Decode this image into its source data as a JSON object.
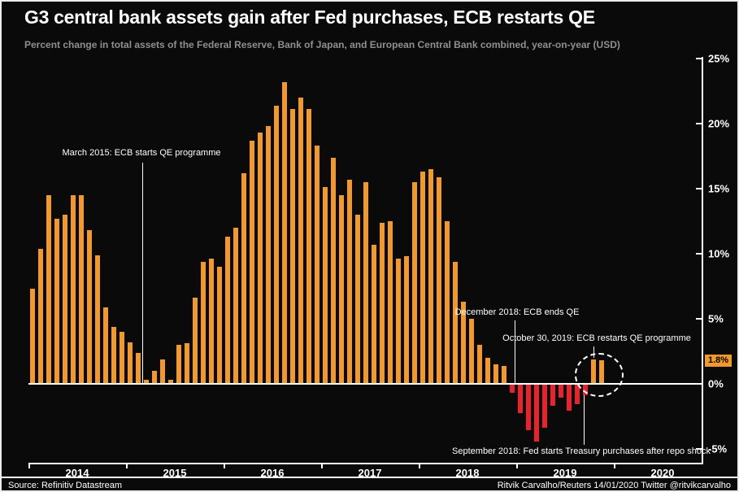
{
  "header": {
    "title": "G3 central bank assets gain after Fed purchases, ECB restarts QE",
    "subtitle": "Percent change in total assets of the Federal Reserve, Bank of Japan, and European Central Bank combined, year-on-year (USD)"
  },
  "annotations": {
    "march_2015": "March 2015: ECB starts QE programme",
    "december_2018": "December 2018: ECB ends QE",
    "october_2019": "October 30, 2019: ECB restarts QE programme",
    "september_repo": "September 2018: Fed starts Treasury purchases after repo shock"
  },
  "latest_value_label": "1.8%",
  "footer": {
    "source": "Source: Refinitiv Datastream",
    "credit": "Ritvik Carvalho/Reuters 14/01/2020 Twitter @ritvikcarvalho"
  },
  "colors": {
    "positive_bar": "#F2992E",
    "negative_bar": "#E8232E",
    "background": "#0A0A0A",
    "text": "#FFFFFF",
    "subtitle_text": "#8F8F8F"
  },
  "chart_data": {
    "type": "bar",
    "title": "G3 central bank assets gain after Fed purchases, ECB restarts QE",
    "ylabel": "Percent change year-on-year (USD)",
    "start_month": "2014-01",
    "end_month": "2019-11",
    "x_years": [
      "2014",
      "2015",
      "2016",
      "2017",
      "2018",
      "2019",
      "2020"
    ],
    "y_ticks": [
      {
        "label": "25%",
        "value": 25
      },
      {
        "label": "20%",
        "value": 20
      },
      {
        "label": "15%",
        "value": 15
      },
      {
        "label": "10%",
        "value": 10
      },
      {
        "label": "5%",
        "value": 5
      },
      {
        "label": "0%",
        "value": 0
      },
      {
        "label": "-5%",
        "value": -5
      }
    ],
    "ylim": [
      -6.3,
      25.2
    ],
    "grid": false,
    "legend": "none",
    "values": [
      7.3,
      10.4,
      14.5,
      12.7,
      13.0,
      14.5,
      14.5,
      11.8,
      9.9,
      5.9,
      4.4,
      4.0,
      3.2,
      2.4,
      0.3,
      1.0,
      1.9,
      0.3,
      3.0,
      3.1,
      6.6,
      9.4,
      9.6,
      9.0,
      11.3,
      12.0,
      16.2,
      18.7,
      19.3,
      19.8,
      21.4,
      23.2,
      21.1,
      22.0,
      21.1,
      18.3,
      15.1,
      17.4,
      14.5,
      15.7,
      13.0,
      15.5,
      10.7,
      12.4,
      12.5,
      9.6,
      9.8,
      15.5,
      16.3,
      16.5,
      15.9,
      12.5,
      9.4,
      6.3,
      5.0,
      3.0,
      2.0,
      1.5,
      1.4,
      -0.6,
      -2.2,
      -3.5,
      -4.4,
      -3.3,
      -1.6,
      -1.0,
      -2.0,
      -1.5,
      -0.8,
      1.9,
      1.8
    ],
    "latest_value": 1.8
  }
}
